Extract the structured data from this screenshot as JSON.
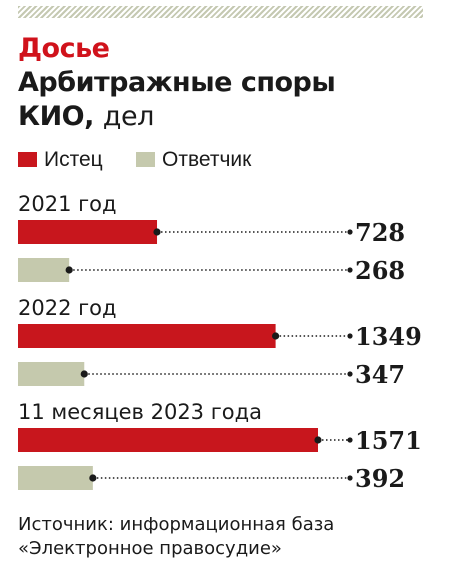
{
  "header": {
    "kicker": "Досье",
    "title_main": "Арбитражные споры",
    "title_second": "КИО,",
    "unit": "дел"
  },
  "legend": [
    {
      "label": "Истец",
      "color": "#c8161d"
    },
    {
      "label": "Ответчик",
      "color": "#c5c9ad"
    }
  ],
  "chart_data": {
    "type": "bar",
    "orientation": "horizontal",
    "categories": [
      "2021 год",
      "2022 год",
      "11 месяцев 2023 года"
    ],
    "series": [
      {
        "name": "Истец",
        "values": [
          728,
          1349,
          1571
        ]
      },
      {
        "name": "Ответчик",
        "values": [
          268,
          347,
          392
        ]
      }
    ],
    "title": "Арбитражные споры КИО, дел",
    "xlabel": "",
    "ylabel": "",
    "xlim": [
      0,
      1571
    ],
    "grid": false,
    "legend_position": "top-left"
  },
  "footer": {
    "source_line1": "Источник: информационная база",
    "source_line2": "«Электронное правосудие»"
  }
}
